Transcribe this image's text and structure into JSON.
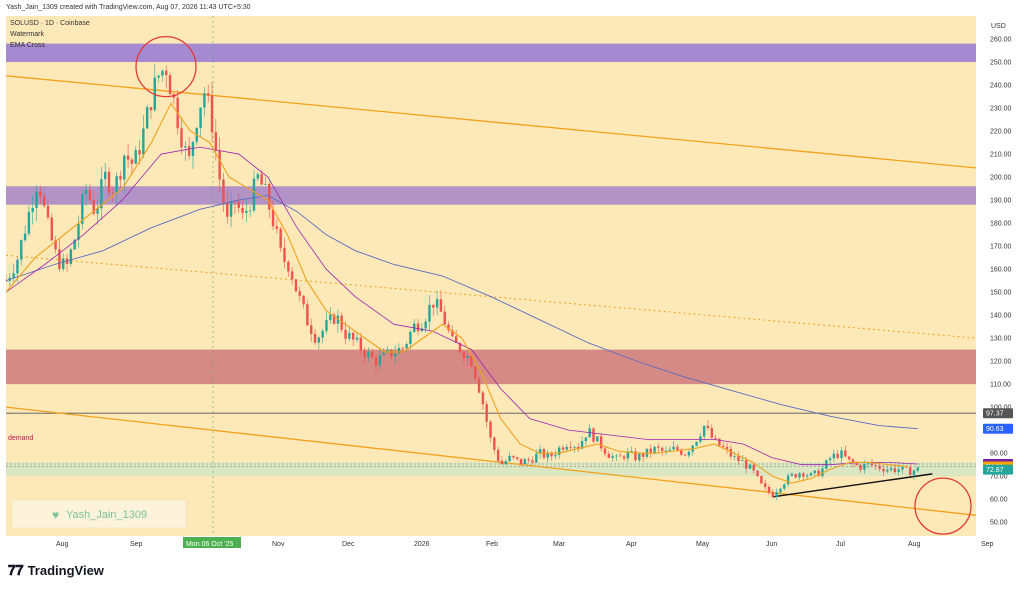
{
  "header": {
    "text": "Yash_Jain_1309 created with TradingView.com, Aug 07, 2026 11:43 UTC+5:30"
  },
  "chart_data": {
    "type": "candlestick",
    "symbol_line": "SOLUSD · 1D · Coinbase",
    "indicators": [
      "Watermark",
      "EMA Cross"
    ],
    "currency": "USD",
    "y_ticks": [
      50,
      60,
      70,
      80,
      90,
      100,
      110,
      120,
      130,
      140,
      150,
      160,
      170,
      180,
      190,
      200,
      210,
      220,
      230,
      240,
      250,
      260
    ],
    "y_tick_labels": [
      "50.00",
      "60.00",
      "70.00",
      "80.00",
      "90.00",
      "100.00",
      "110.00",
      "120.00",
      "130.00",
      "140.00",
      "150.00",
      "160.00",
      "170.00",
      "180.00",
      "190.00",
      "200.00",
      "210.00",
      "220.00",
      "230.00",
      "240.00",
      "250.00",
      "260.00"
    ],
    "ylim": [
      44,
      270
    ],
    "x_ticks": [
      "Aug",
      "Sep",
      "Mon 06 Oct '25",
      "Nov",
      "Dec",
      "2026",
      "Feb",
      "Mar",
      "Apr",
      "May",
      "Jun",
      "Jul",
      "Aug",
      "Sep"
    ],
    "price_labels": [
      {
        "value": 97.37,
        "text": "97.37",
        "color": "#555555"
      },
      {
        "value": 90.63,
        "text": "90.63",
        "color": "#2962ff"
      },
      {
        "value": 75.29,
        "text": "75.29",
        "color": "#7b1fa2"
      },
      {
        "value": 74.21,
        "text": "74.21",
        "color": "#f7a600"
      },
      {
        "value": 72.87,
        "text": "72.87",
        "color": "#26a69a"
      }
    ],
    "zones": [
      {
        "low": 250,
        "high": 258,
        "color": "#9b7fd4"
      },
      {
        "low": 188,
        "high": 196,
        "color": "#a88ac8"
      },
      {
        "low": 110,
        "high": 125,
        "color": "#d08080"
      },
      {
        "low": 70,
        "high": 76,
        "color": "#d7e6c4"
      }
    ],
    "demand_label": "demand",
    "horizontal_line": 97.37,
    "channel_upper": [
      [
        0,
        244
      ],
      [
        1,
        204
      ]
    ],
    "channel_lower": [
      [
        0,
        100
      ],
      [
        1,
        53
      ]
    ],
    "midline": [
      [
        0,
        166
      ],
      [
        1,
        130
      ]
    ],
    "support_trend": [
      [
        0.79,
        61
      ],
      [
        0.955,
        71
      ]
    ],
    "ohlc_close_path": [
      [
        0.0,
        155
      ],
      [
        0.012,
        165
      ],
      [
        0.024,
        185
      ],
      [
        0.033,
        200
      ],
      [
        0.042,
        180
      ],
      [
        0.052,
        165
      ],
      [
        0.062,
        160
      ],
      [
        0.072,
        175
      ],
      [
        0.082,
        195
      ],
      [
        0.092,
        185
      ],
      [
        0.102,
        200
      ],
      [
        0.112,
        195
      ],
      [
        0.122,
        210
      ],
      [
        0.132,
        205
      ],
      [
        0.142,
        220
      ],
      [
        0.15,
        235
      ],
      [
        0.158,
        245
      ],
      [
        0.165,
        248
      ],
      [
        0.172,
        235
      ],
      [
        0.18,
        220
      ],
      [
        0.188,
        205
      ],
      [
        0.196,
        225
      ],
      [
        0.204,
        238
      ],
      [
        0.212,
        225
      ],
      [
        0.22,
        200
      ],
      [
        0.228,
        180
      ],
      [
        0.236,
        190
      ],
      [
        0.244,
        182
      ],
      [
        0.252,
        190
      ],
      [
        0.26,
        200
      ],
      [
        0.268,
        192
      ],
      [
        0.276,
        180
      ],
      [
        0.284,
        165
      ],
      [
        0.292,
        162
      ],
      [
        0.3,
        150
      ],
      [
        0.31,
        138
      ],
      [
        0.32,
        130
      ],
      [
        0.33,
        135
      ],
      [
        0.34,
        140
      ],
      [
        0.35,
        132
      ],
      [
        0.36,
        128
      ],
      [
        0.37,
        124
      ],
      [
        0.38,
        120
      ],
      [
        0.39,
        122
      ],
      [
        0.4,
        124
      ],
      [
        0.41,
        126
      ],
      [
        0.42,
        135
      ],
      [
        0.43,
        138
      ],
      [
        0.44,
        146
      ],
      [
        0.45,
        140
      ],
      [
        0.46,
        128
      ],
      [
        0.47,
        125
      ],
      [
        0.48,
        120
      ],
      [
        0.49,
        105
      ],
      [
        0.5,
        85
      ],
      [
        0.51,
        75
      ],
      [
        0.52,
        78
      ],
      [
        0.53,
        76
      ],
      [
        0.54,
        77
      ],
      [
        0.55,
        80
      ],
      [
        0.56,
        78
      ],
      [
        0.57,
        82
      ],
      [
        0.58,
        85
      ],
      [
        0.59,
        83
      ],
      [
        0.6,
        90
      ],
      [
        0.61,
        85
      ],
      [
        0.62,
        80
      ],
      [
        0.63,
        77
      ],
      [
        0.64,
        80
      ],
      [
        0.65,
        78
      ],
      [
        0.66,
        80
      ],
      [
        0.67,
        82
      ],
      [
        0.68,
        80
      ],
      [
        0.69,
        82
      ],
      [
        0.7,
        80
      ],
      [
        0.71,
        85
      ],
      [
        0.72,
        92
      ],
      [
        0.73,
        85
      ],
      [
        0.74,
        82
      ],
      [
        0.75,
        78
      ],
      [
        0.76,
        76
      ],
      [
        0.77,
        72
      ],
      [
        0.78,
        65
      ],
      [
        0.79,
        62
      ],
      [
        0.8,
        67
      ],
      [
        0.81,
        70
      ],
      [
        0.82,
        72
      ],
      [
        0.83,
        70
      ],
      [
        0.84,
        72
      ],
      [
        0.85,
        78
      ],
      [
        0.86,
        80
      ],
      [
        0.87,
        76
      ],
      [
        0.88,
        74
      ],
      [
        0.89,
        75
      ],
      [
        0.9,
        74
      ],
      [
        0.91,
        73
      ],
      [
        0.92,
        73
      ],
      [
        0.93,
        72
      ],
      [
        0.94,
        72.87
      ]
    ],
    "ema_short": [
      [
        0.0,
        150
      ],
      [
        0.03,
        165
      ],
      [
        0.06,
        175
      ],
      [
        0.09,
        185
      ],
      [
        0.12,
        195
      ],
      [
        0.15,
        215
      ],
      [
        0.17,
        232
      ],
      [
        0.19,
        220
      ],
      [
        0.21,
        215
      ],
      [
        0.23,
        200
      ],
      [
        0.25,
        195
      ],
      [
        0.27,
        190
      ],
      [
        0.29,
        175
      ],
      [
        0.31,
        155
      ],
      [
        0.33,
        142
      ],
      [
        0.35,
        136
      ],
      [
        0.37,
        130
      ],
      [
        0.39,
        124
      ],
      [
        0.41,
        124
      ],
      [
        0.43,
        130
      ],
      [
        0.45,
        136
      ],
      [
        0.47,
        130
      ],
      [
        0.49,
        115
      ],
      [
        0.51,
        95
      ],
      [
        0.53,
        84
      ],
      [
        0.55,
        80
      ],
      [
        0.57,
        80
      ],
      [
        0.59,
        82
      ],
      [
        0.61,
        84
      ],
      [
        0.63,
        81
      ],
      [
        0.65,
        80
      ],
      [
        0.67,
        80
      ],
      [
        0.69,
        81
      ],
      [
        0.71,
        82
      ],
      [
        0.73,
        84
      ],
      [
        0.75,
        80
      ],
      [
        0.77,
        76
      ],
      [
        0.79,
        70
      ],
      [
        0.81,
        67
      ],
      [
        0.83,
        69
      ],
      [
        0.85,
        73
      ],
      [
        0.87,
        76
      ],
      [
        0.89,
        76
      ],
      [
        0.91,
        75
      ],
      [
        0.93,
        74.21
      ]
    ],
    "ema_long": [
      [
        0.0,
        155
      ],
      [
        0.05,
        162
      ],
      [
        0.1,
        168
      ],
      [
        0.15,
        178
      ],
      [
        0.2,
        186
      ],
      [
        0.24,
        190
      ],
      [
        0.27,
        192
      ],
      [
        0.3,
        185
      ],
      [
        0.33,
        175
      ],
      [
        0.36,
        168
      ],
      [
        0.4,
        162
      ],
      [
        0.45,
        157
      ],
      [
        0.5,
        148
      ],
      [
        0.55,
        138
      ],
      [
        0.6,
        128
      ],
      [
        0.65,
        120
      ],
      [
        0.7,
        113
      ],
      [
        0.75,
        107
      ],
      [
        0.8,
        101
      ],
      [
        0.85,
        96
      ],
      [
        0.9,
        92
      ],
      [
        0.94,
        90.63
      ]
    ],
    "ema_mid": [
      [
        0.0,
        150
      ],
      [
        0.04,
        162
      ],
      [
        0.08,
        175
      ],
      [
        0.12,
        190
      ],
      [
        0.16,
        210
      ],
      [
        0.2,
        213
      ],
      [
        0.24,
        210
      ],
      [
        0.27,
        200
      ],
      [
        0.3,
        178
      ],
      [
        0.33,
        160
      ],
      [
        0.36,
        148
      ],
      [
        0.4,
        136
      ],
      [
        0.44,
        133
      ],
      [
        0.48,
        125
      ],
      [
        0.51,
        108
      ],
      [
        0.54,
        95
      ],
      [
        0.58,
        90
      ],
      [
        0.62,
        88
      ],
      [
        0.66,
        86
      ],
      [
        0.7,
        86
      ],
      [
        0.73,
        86
      ],
      [
        0.76,
        84
      ],
      [
        0.79,
        78
      ],
      [
        0.82,
        75
      ],
      [
        0.85,
        75
      ],
      [
        0.88,
        76
      ],
      [
        0.91,
        76
      ],
      [
        0.94,
        75.29
      ]
    ],
    "crosshair_date_label": "Mon 06 Oct '25"
  },
  "watermark": {
    "text": "Yash_Jain_1309"
  },
  "footer": {
    "brand": "TradingView"
  },
  "colors": {
    "background": "#fde8b8",
    "channel": "#f0a21b",
    "midline": "#f0a21b",
    "up": "#26a69a",
    "down": "#ef5350",
    "ema_short": "#f0a21b",
    "ema_mid": "#9c27b0",
    "ema_long": "#5c6bc0",
    "circle": "#e53935"
  }
}
